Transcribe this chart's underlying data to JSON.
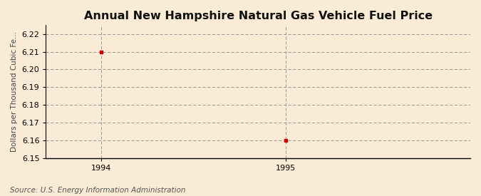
{
  "title": "Annual New Hampshire Natural Gas Vehicle Fuel Price",
  "ylabel": "Dollars per Thousand Cubic Fe...",
  "source": "Source: U.S. Energy Information Administration",
  "x_data": [
    1994,
    1995
  ],
  "y_data": [
    6.21,
    6.16
  ],
  "xlim": [
    1993.7,
    1996.0
  ],
  "ylim": [
    6.15,
    6.225
  ],
  "yticks": [
    6.15,
    6.16,
    6.17,
    6.18,
    6.19,
    6.2,
    6.21,
    6.22
  ],
  "xticks": [
    1994,
    1995
  ],
  "background_color": "#faebd7",
  "plot_bg_color": "#faebd7",
  "marker_color": "#cc0000",
  "grid_color": "#888888",
  "title_fontsize": 11.5,
  "label_fontsize": 7.5,
  "tick_fontsize": 8,
  "source_fontsize": 7.5
}
